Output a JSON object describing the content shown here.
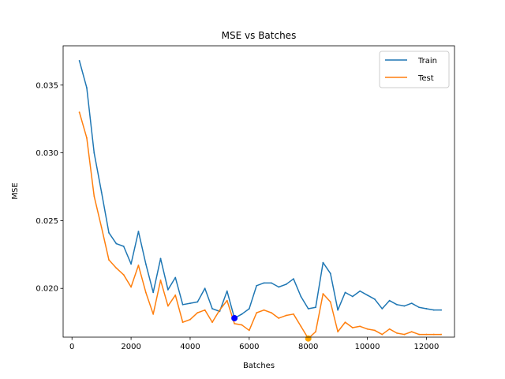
{
  "chart_data": {
    "type": "line",
    "title": "MSE vs Batches",
    "xlabel": "Batches",
    "ylabel": "MSE",
    "xlim": [
      -300,
      12950
    ],
    "ylim": [
      0.0164,
      0.0379
    ],
    "xticks": [
      0,
      2000,
      4000,
      6000,
      8000,
      10000,
      12000
    ],
    "xtick_labels": [
      "0",
      "2000",
      "4000",
      "6000",
      "8000",
      "10000",
      "12000"
    ],
    "yticks": [
      0.02,
      0.025,
      0.03,
      0.035
    ],
    "ytick_labels": [
      "0.020",
      "0.025",
      "0.030",
      "0.035"
    ],
    "legend_position": "top-right",
    "grid": false,
    "x": [
      250,
      500,
      750,
      1000,
      1250,
      1500,
      1750,
      2000,
      2250,
      2500,
      2750,
      3000,
      3250,
      3500,
      3750,
      4000,
      4250,
      4500,
      4750,
      5000,
      5250,
      5500,
      5750,
      6000,
      6250,
      6500,
      6750,
      7000,
      7250,
      7500,
      7750,
      8000,
      8250,
      8500,
      8750,
      9000,
      9250,
      9500,
      9750,
      10000,
      10250,
      10500,
      10750,
      11000,
      11250,
      11500,
      11750,
      12000,
      12250,
      12500
    ],
    "series": [
      {
        "name": "Train",
        "color": "#1f77b4",
        "values": [
          0.0368,
          0.0348,
          0.03,
          0.0271,
          0.0241,
          0.0233,
          0.0231,
          0.0218,
          0.0242,
          0.0218,
          0.0197,
          0.0222,
          0.0199,
          0.0208,
          0.0188,
          0.0189,
          0.019,
          0.02,
          0.0185,
          0.0183,
          0.0198,
          0.0178,
          0.0181,
          0.0185,
          0.0202,
          0.0204,
          0.0204,
          0.0201,
          0.0203,
          0.0207,
          0.0194,
          0.0185,
          0.0186,
          0.0219,
          0.0211,
          0.0184,
          0.0197,
          0.0194,
          0.0198,
          0.0195,
          0.0192,
          0.0185,
          0.0191,
          0.0188,
          0.0187,
          0.0189,
          0.0186,
          0.0185,
          0.0184,
          0.0184
        ]
      },
      {
        "name": "Test",
        "color": "#ff7f0e",
        "values": [
          0.033,
          0.0311,
          0.0268,
          0.0245,
          0.0221,
          0.0215,
          0.021,
          0.0201,
          0.0217,
          0.0197,
          0.0181,
          0.0206,
          0.0187,
          0.0195,
          0.0175,
          0.0177,
          0.0182,
          0.0184,
          0.0175,
          0.0184,
          0.0191,
          0.0174,
          0.0173,
          0.0169,
          0.0182,
          0.0184,
          0.0182,
          0.0178,
          0.018,
          0.0181,
          0.0172,
          0.0163,
          0.0168,
          0.0196,
          0.019,
          0.0168,
          0.0175,
          0.0171,
          0.0172,
          0.017,
          0.0169,
          0.0166,
          0.017,
          0.0167,
          0.0166,
          0.0168,
          0.0166,
          0.0166,
          0.0166,
          0.0166
        ]
      }
    ],
    "markers": [
      {
        "series": "Train",
        "x": 5500,
        "y": 0.0178,
        "color": "#0000ff"
      },
      {
        "series": "Test",
        "x": 8000,
        "y": 0.0163,
        "color": "#ffa500"
      }
    ]
  }
}
